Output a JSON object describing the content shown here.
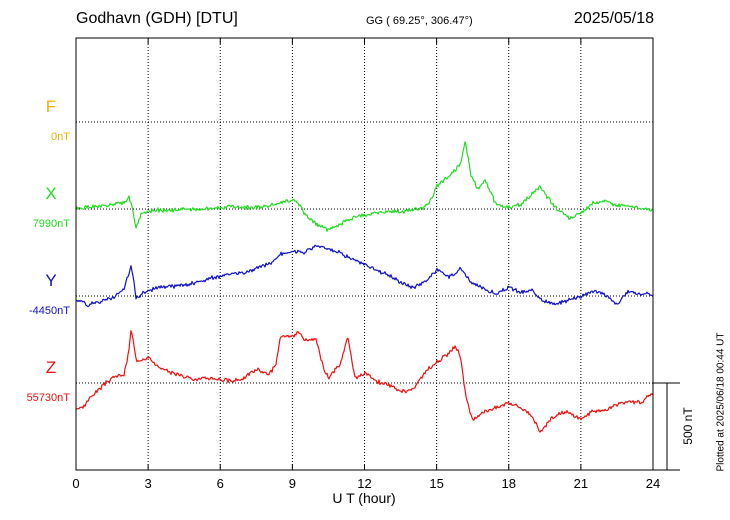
{
  "header": {
    "station": "Godhavn (GDH)  [DTU]",
    "coords": "GG ( 69.25°, 306.47°)",
    "date": "2025/05/18"
  },
  "plotted_note": "Plotted at 2025/06/18 00:44 UT",
  "chart_data": {
    "type": "line",
    "xlabel": "U T (hour)",
    "xlim": [
      0,
      24
    ],
    "xticks": [
      0,
      3,
      6,
      9,
      12,
      15,
      18,
      21,
      24
    ],
    "scale_bar": {
      "label": "500 nT",
      "value": 500
    },
    "colors": {
      "F": "#f0b000",
      "X": "#22dd22",
      "Y": "#1010cc",
      "Z": "#ee1111"
    },
    "series": [
      {
        "name": "F",
        "baseline_label": "0nT",
        "baseline": 0,
        "values": []
      },
      {
        "name": "X",
        "baseline_label": "7990nT",
        "baseline": 7990,
        "x": [
          0,
          0.5,
          1,
          1.5,
          2,
          2.2,
          2.35,
          2.5,
          2.7,
          3,
          3.5,
          4,
          4.5,
          5,
          5.5,
          6,
          6.5,
          7,
          7.5,
          8,
          8.5,
          9,
          9.3,
          9.5,
          10,
          10.5,
          11,
          11.5,
          12,
          12.5,
          13,
          13.5,
          14,
          14.5,
          14.8,
          15,
          15.5,
          16,
          16.2,
          16.4,
          16.7,
          17,
          17.5,
          18,
          18.5,
          19,
          19.3,
          19.6,
          20,
          20.5,
          21,
          21.5,
          22,
          22.5,
          23,
          23.5,
          24
        ],
        "values": [
          7990,
          8000,
          8005,
          8010,
          8030,
          8060,
          7995,
          7880,
          7960,
          7975,
          7985,
          7980,
          7990,
          7985,
          7995,
          7995,
          8005,
          8000,
          8000,
          8010,
          8025,
          8040,
          8015,
          7965,
          7900,
          7870,
          7900,
          7940,
          7955,
          7965,
          7975,
          7975,
          7985,
          7995,
          8050,
          8120,
          8180,
          8250,
          8380,
          8200,
          8100,
          8160,
          8010,
          7995,
          8015,
          8080,
          8120,
          8060,
          7990,
          7940,
          7960,
          8025,
          8040,
          8010,
          8005,
          7995,
          7985
        ]
      },
      {
        "name": "Y",
        "baseline_label": "-4450nT",
        "baseline": -4450,
        "x": [
          0,
          0.5,
          1,
          1.5,
          2,
          2.3,
          2.5,
          3,
          3.5,
          4,
          4.5,
          5,
          5.5,
          6,
          6.5,
          7,
          7.5,
          8,
          8.5,
          9,
          9.5,
          10,
          10.5,
          11,
          11.5,
          12,
          12.5,
          13,
          13.5,
          14,
          14.5,
          15,
          15.5,
          16,
          16.5,
          17,
          17.5,
          18,
          18.5,
          19,
          19.5,
          20,
          20.5,
          21,
          21.5,
          22,
          22.5,
          23,
          23.5,
          24
        ],
        "values": [
          -4470,
          -4500,
          -4480,
          -4460,
          -4410,
          -4270,
          -4460,
          -4420,
          -4400,
          -4395,
          -4385,
          -4375,
          -4350,
          -4340,
          -4320,
          -4320,
          -4290,
          -4270,
          -4210,
          -4190,
          -4200,
          -4160,
          -4180,
          -4200,
          -4240,
          -4270,
          -4300,
          -4330,
          -4370,
          -4400,
          -4370,
          -4300,
          -4340,
          -4290,
          -4380,
          -4410,
          -4440,
          -4400,
          -4430,
          -4420,
          -4480,
          -4500,
          -4470,
          -4450,
          -4420,
          -4440,
          -4500,
          -4420,
          -4440,
          -4440
        ]
      },
      {
        "name": "Z",
        "baseline_label": "55730nT",
        "baseline": 55730,
        "x": [
          0,
          0.3,
          0.6,
          1,
          1.5,
          2,
          2.15,
          2.3,
          2.5,
          3,
          3.5,
          4,
          4.5,
          5,
          5.5,
          6,
          6.5,
          7,
          7.5,
          8,
          8.3,
          8.5,
          9,
          9.3,
          9.5,
          10,
          10.3,
          10.5,
          11,
          11.3,
          11.6,
          12,
          12.5,
          13,
          13.5,
          14,
          14.5,
          15,
          15.5,
          15.8,
          16,
          16.2,
          16.5,
          17,
          17.5,
          18,
          18.5,
          19,
          19.3,
          19.6,
          20,
          20.5,
          21,
          21.5,
          22,
          22.5,
          23,
          23.5,
          24
        ],
        "values": [
          55580,
          55590,
          55650,
          55700,
          55760,
          55780,
          55870,
          56040,
          55860,
          55880,
          55810,
          55790,
          55770,
          55750,
          55760,
          55750,
          55740,
          55760,
          55810,
          55780,
          55830,
          55990,
          56000,
          56020,
          55970,
          55980,
          55810,
          55760,
          55840,
          56000,
          55760,
          55790,
          55740,
          55720,
          55680,
          55690,
          55790,
          55850,
          55900,
          55940,
          55880,
          55660,
          55510,
          55570,
          55590,
          55620,
          55590,
          55540,
          55440,
          55500,
          55550,
          55560,
          55520,
          55570,
          55570,
          55610,
          55620,
          55620,
          55670
        ]
      }
    ]
  }
}
